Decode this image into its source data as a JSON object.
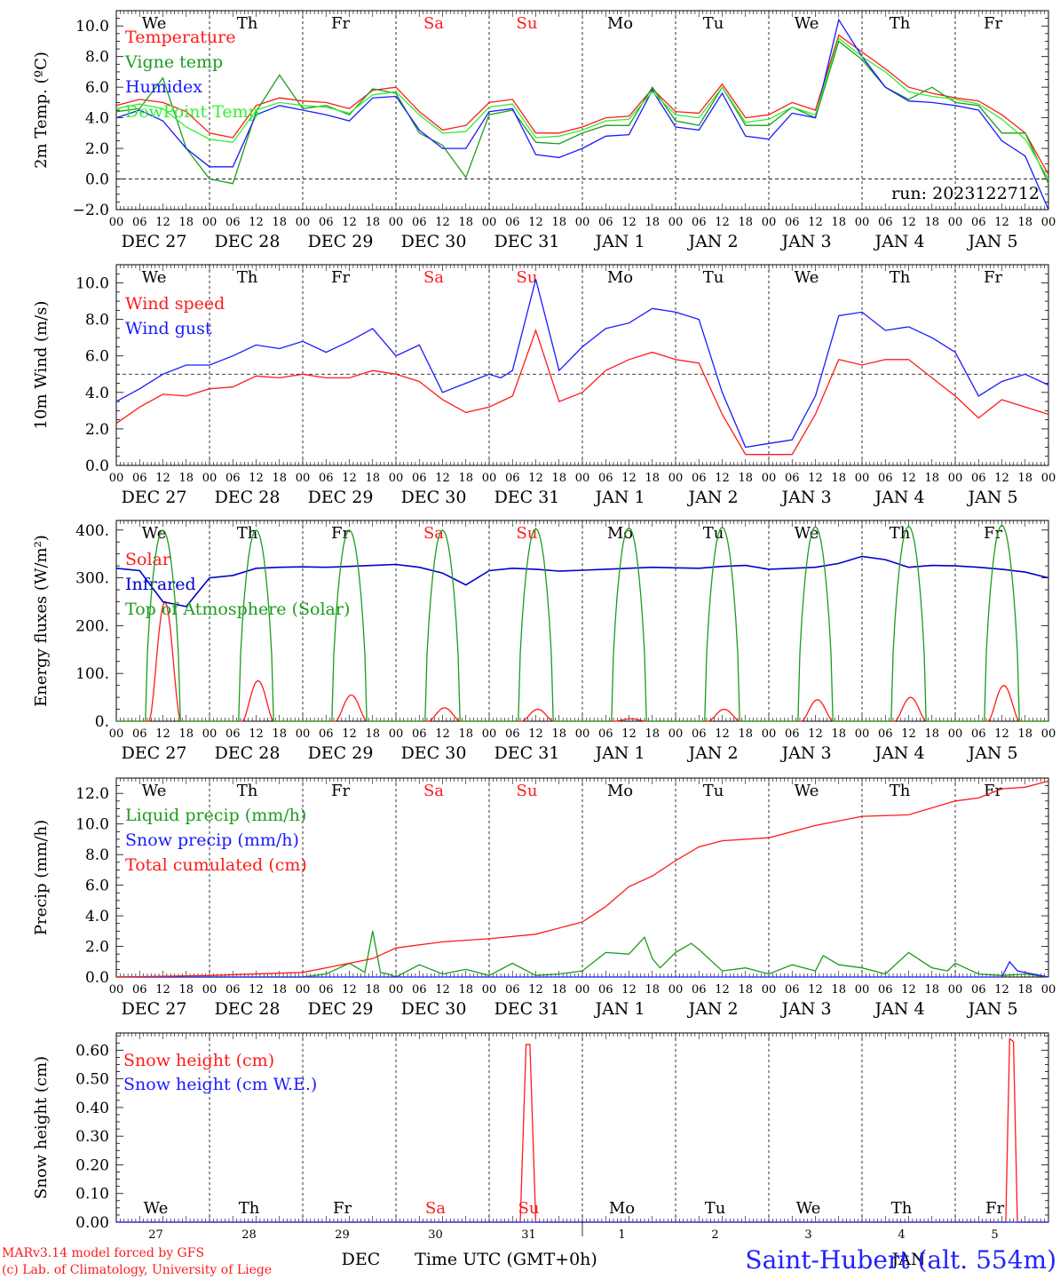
{
  "time_axis": {
    "hour_labels": [
      "00",
      "06",
      "12",
      "18"
    ],
    "end_label": "00",
    "day_labels": [
      "DEC 27",
      "DEC 28",
      "DEC 29",
      "DEC 30",
      "DEC 31",
      "JAN  1",
      "JAN  2",
      "JAN  3",
      "JAN  4",
      "JAN  5"
    ],
    "weekdays": [
      "We",
      "Th",
      "Fr",
      "Sa",
      "Su",
      "Mo",
      "Tu",
      "We",
      "Th",
      "Fr"
    ],
    "weekend_indices": [
      3,
      4
    ],
    "bottom_day_numbers": [
      "27",
      "28",
      "29",
      "30",
      "31",
      "1",
      "2",
      "3",
      "4",
      "5"
    ],
    "bottom_month_left": "DEC",
    "bottom_month_right": "JAN",
    "xlabel": "Time UTC (GMT+0h)"
  },
  "footer": {
    "model_line": "MARv3.14 model forced by GFS",
    "lab_line": "(c) Lab. of Climatology, University of Liege",
    "station": "Saint-Hubert (alt. 554m)"
  },
  "colors": {
    "red": "#ff1a1a",
    "green": "#1c9c1c",
    "blue": "#1a1aff",
    "light_green": "#33ee33",
    "dark_blue": "#0000cc"
  },
  "chart_data": [
    {
      "type": "line",
      "ylabel": "2m Temp. (ºC)",
      "ylim": [
        -2,
        11
      ],
      "yticks": [
        -2,
        0,
        2,
        4,
        6,
        8,
        10
      ],
      "ytick_labels": [
        "−2.0",
        "0.0",
        "2.0",
        "4.0",
        "6.0",
        "8.0",
        "10.0"
      ],
      "hline": 0,
      "run_label": "run: 2023122712",
      "series": [
        {
          "name": "Temperature",
          "color": "red",
          "x": [
            0,
            6,
            12,
            18,
            24,
            30,
            36,
            42,
            48,
            54,
            60,
            66,
            72,
            78,
            84,
            90,
            96,
            102,
            108,
            114,
            120,
            126,
            132,
            138,
            144,
            150,
            156,
            162,
            168,
            174,
            180,
            186,
            192,
            198,
            204,
            210,
            216,
            222,
            228,
            234,
            240
          ],
          "values": [
            4.8,
            5.2,
            5.0,
            4.4,
            3.0,
            2.7,
            4.8,
            5.3,
            5.1,
            5.0,
            4.6,
            5.8,
            6.0,
            4.4,
            3.2,
            3.5,
            5.0,
            5.2,
            3.0,
            3.0,
            3.4,
            4.0,
            4.1,
            5.9,
            4.4,
            4.3,
            6.2,
            4.0,
            4.2,
            5.0,
            4.5,
            9.4,
            8.3,
            7.2,
            6.0,
            5.6,
            5.3,
            5.1,
            4.2,
            3.0,
            0.3
          ]
        },
        {
          "name": "Vigne temp",
          "color": "green",
          "x": [
            0,
            6,
            12,
            18,
            24,
            30,
            36,
            42,
            48,
            54,
            60,
            66,
            72,
            78,
            84,
            90,
            96,
            102,
            108,
            114,
            120,
            126,
            132,
            138,
            144,
            150,
            156,
            162,
            168,
            174,
            180,
            186,
            192,
            198,
            204,
            210,
            216,
            222,
            228,
            234,
            240
          ],
          "values": [
            4.4,
            4.6,
            6.6,
            2.0,
            0.0,
            -0.3,
            4.4,
            6.8,
            4.6,
            4.8,
            4.2,
            5.9,
            5.6,
            3.0,
            2.2,
            0.1,
            4.2,
            4.5,
            2.4,
            2.3,
            3.0,
            3.5,
            3.5,
            6.0,
            3.8,
            3.5,
            6.0,
            3.5,
            3.5,
            4.7,
            4.0,
            9.0,
            7.8,
            6.0,
            5.2,
            6.0,
            5.0,
            4.8,
            3.0,
            3.0,
            -0.3
          ]
        },
        {
          "name": "Humidex",
          "color": "blue",
          "x": [
            0,
            6,
            12,
            18,
            24,
            30,
            36,
            42,
            48,
            54,
            60,
            66,
            72,
            78,
            84,
            90,
            96,
            102,
            108,
            114,
            120,
            126,
            132,
            138,
            144,
            150,
            156,
            162,
            168,
            174,
            180,
            186,
            192,
            198,
            204,
            210,
            216,
            222,
            228,
            234,
            240
          ],
          "values": [
            4.0,
            4.5,
            3.8,
            2.0,
            0.8,
            0.8,
            4.2,
            4.8,
            4.5,
            4.2,
            3.8,
            5.3,
            5.4,
            3.2,
            2.0,
            2.0,
            4.4,
            4.6,
            1.6,
            1.4,
            2.0,
            2.8,
            2.9,
            5.8,
            3.4,
            3.2,
            5.6,
            2.8,
            2.6,
            4.3,
            4.0,
            10.4,
            8.0,
            6.0,
            5.1,
            5.0,
            4.8,
            4.5,
            2.5,
            1.5,
            -2.0
          ]
        },
        {
          "name": "DewPoint Temp",
          "color": "light_green",
          "x": [
            0,
            6,
            12,
            18,
            24,
            30,
            36,
            42,
            48,
            54,
            60,
            66,
            72,
            78,
            84,
            90,
            96,
            102,
            108,
            114,
            120,
            126,
            132,
            138,
            144,
            150,
            156,
            162,
            168,
            174,
            180,
            186,
            192,
            198,
            204,
            210,
            216,
            222,
            228,
            234,
            240
          ],
          "values": [
            4.6,
            4.9,
            4.6,
            3.4,
            2.6,
            2.4,
            4.5,
            5.0,
            4.8,
            4.7,
            4.3,
            5.5,
            5.7,
            4.2,
            3.0,
            3.1,
            4.7,
            4.9,
            2.7,
            2.8,
            3.2,
            3.8,
            3.9,
            5.7,
            4.2,
            4.0,
            6.0,
            3.7,
            3.9,
            4.7,
            4.2,
            9.2,
            8.0,
            7.0,
            5.7,
            5.4,
            5.2,
            4.9,
            3.9,
            2.6,
            0.0
          ]
        }
      ]
    },
    {
      "type": "line",
      "ylabel": "10m Wind (m/s)",
      "ylim": [
        0,
        11
      ],
      "yticks": [
        0,
        2,
        4,
        6,
        8,
        10
      ],
      "ytick_labels": [
        "0.0",
        "2.0",
        "4.0",
        "6.0",
        "8.0",
        "10.0"
      ],
      "hline": 5,
      "series": [
        {
          "name": "Wind speed",
          "color": "red",
          "x": [
            0,
            6,
            12,
            18,
            24,
            30,
            36,
            42,
            48,
            54,
            60,
            66,
            72,
            78,
            84,
            90,
            96,
            99,
            102,
            108,
            114,
            120,
            126,
            132,
            138,
            144,
            150,
            156,
            162,
            168,
            174,
            180,
            186,
            192,
            198,
            204,
            210,
            216,
            222,
            228,
            234,
            240
          ],
          "values": [
            2.3,
            3.2,
            3.9,
            3.8,
            4.2,
            4.3,
            4.9,
            4.8,
            5.0,
            4.8,
            4.8,
            5.2,
            5.0,
            4.6,
            3.6,
            2.9,
            3.2,
            3.5,
            3.8,
            7.4,
            3.5,
            4.0,
            5.2,
            5.8,
            6.2,
            5.8,
            5.6,
            2.8,
            0.6,
            0.6,
            0.6,
            2.8,
            5.8,
            5.5,
            5.8,
            5.8,
            4.8,
            3.8,
            2.6,
            3.6,
            3.2,
            2.8
          ]
        },
        {
          "name": "Wind gust",
          "color": "blue",
          "x": [
            0,
            6,
            12,
            18,
            24,
            30,
            36,
            42,
            48,
            54,
            60,
            66,
            72,
            78,
            84,
            90,
            96,
            99,
            102,
            108,
            114,
            120,
            126,
            132,
            138,
            144,
            150,
            156,
            162,
            168,
            174,
            180,
            186,
            192,
            198,
            204,
            210,
            216,
            222,
            228,
            234,
            240
          ],
          "values": [
            3.5,
            4.2,
            5.0,
            5.5,
            5.5,
            6.0,
            6.6,
            6.4,
            6.8,
            6.2,
            6.8,
            7.5,
            6.0,
            6.6,
            4.0,
            4.5,
            5.0,
            4.8,
            5.2,
            10.2,
            5.2,
            6.5,
            7.5,
            7.8,
            8.6,
            8.4,
            8.0,
            4.0,
            1.0,
            1.2,
            1.4,
            3.8,
            8.2,
            8.4,
            7.4,
            7.6,
            7.0,
            6.2,
            3.8,
            4.6,
            5.0,
            4.4
          ]
        }
      ]
    },
    {
      "type": "line",
      "ylabel": "Energy fluxes (W/m²)",
      "ylim": [
        0,
        420
      ],
      "yticks": [
        0,
        100,
        200,
        300,
        400
      ],
      "ytick_labels": [
        "0.",
        "100.",
        "200.",
        "300.",
        "400."
      ],
      "series": [
        {
          "name": "Solar",
          "color": "red",
          "diurnal_peaks": [
            250,
            85,
            55,
            28,
            25,
            5,
            25,
            45,
            50,
            75
          ]
        },
        {
          "name": "Infrared",
          "color": "dark_blue",
          "x": [
            0,
            6,
            12,
            18,
            24,
            30,
            36,
            42,
            48,
            54,
            60,
            66,
            72,
            78,
            84,
            90,
            96,
            102,
            108,
            114,
            120,
            126,
            132,
            138,
            144,
            150,
            156,
            162,
            168,
            174,
            180,
            186,
            192,
            198,
            204,
            210,
            216,
            222,
            228,
            234,
            240
          ],
          "values": [
            320,
            315,
            250,
            240,
            300,
            305,
            320,
            322,
            323,
            322,
            324,
            326,
            328,
            322,
            310,
            285,
            315,
            320,
            318,
            314,
            316,
            318,
            320,
            322,
            321,
            320,
            324,
            326,
            318,
            320,
            322,
            330,
            345,
            338,
            322,
            326,
            325,
            322,
            318,
            312,
            300
          ]
        },
        {
          "name": "Top of Atmosphere (Solar)",
          "color": "green",
          "diurnal_peaks": [
            400,
            400,
            400,
            400,
            403,
            405,
            406,
            407,
            408,
            410
          ]
        }
      ]
    },
    {
      "type": "line",
      "ylabel": "Precip (mm/h)",
      "ylim": [
        0,
        13
      ],
      "yticks": [
        0,
        2,
        4,
        6,
        8,
        10,
        12
      ],
      "ytick_labels": [
        "0.0",
        "2.0",
        "4.0",
        "6.0",
        "8.0",
        "10.0",
        "12.0"
      ],
      "series": [
        {
          "name": "Liquid precip (mm/h)",
          "color": "green",
          "x": [
            0,
            24,
            48,
            54,
            60,
            64,
            66,
            68,
            70,
            72,
            78,
            84,
            90,
            96,
            102,
            108,
            114,
            120,
            126,
            132,
            136,
            138,
            140,
            144,
            148,
            150,
            156,
            162,
            168,
            174,
            180,
            182,
            186,
            192,
            198,
            204,
            210,
            214,
            216,
            222,
            228,
            234,
            240
          ],
          "values": [
            0,
            0,
            0,
            0.2,
            0.9,
            0.3,
            3.0,
            0.3,
            0.2,
            0,
            0.8,
            0.2,
            0.5,
            0.1,
            0.9,
            0.1,
            0.2,
            0.4,
            1.6,
            1.5,
            2.6,
            1.2,
            0.6,
            1.6,
            2.2,
            1.8,
            0.4,
            0.6,
            0.2,
            0.8,
            0.4,
            1.4,
            0.8,
            0.6,
            0.2,
            1.6,
            0.6,
            0.4,
            0.9,
            0.2,
            0.1,
            0.2,
            0
          ]
        },
        {
          "name": "Snow precip (mm/h)",
          "color": "blue",
          "x": [
            0,
            200,
            228,
            230,
            232,
            236,
            240
          ],
          "values": [
            0,
            0,
            0,
            1.0,
            0.4,
            0.2,
            0
          ]
        },
        {
          "name": "Total cumulated (cm)",
          "color": "red",
          "x": [
            0,
            24,
            48,
            60,
            66,
            72,
            84,
            96,
            108,
            120,
            126,
            132,
            138,
            144,
            150,
            156,
            168,
            180,
            192,
            204,
            216,
            222,
            228,
            234,
            240
          ],
          "values": [
            0,
            0.1,
            0.3,
            0.9,
            1.2,
            1.9,
            2.3,
            2.5,
            2.8,
            3.6,
            4.6,
            5.9,
            6.6,
            7.6,
            8.5,
            8.9,
            9.1,
            9.9,
            10.5,
            10.6,
            11.5,
            11.7,
            12.3,
            12.4,
            12.8
          ]
        }
      ]
    },
    {
      "type": "line",
      "ylabel": "Snow height (cm)",
      "ylim": [
        0,
        0.66
      ],
      "yticks": [
        0,
        0.1,
        0.2,
        0.3,
        0.4,
        0.5,
        0.6
      ],
      "ytick_labels": [
        "0.00",
        "0.10",
        "0.20",
        "0.30",
        "0.40",
        "0.50",
        "0.60"
      ],
      "series": [
        {
          "name": "Snow height (cm)",
          "color": "red",
          "x": [
            0,
            104,
            105.5,
            106.5,
            108,
            229,
            230,
            231,
            232,
            240
          ],
          "values": [
            0,
            0,
            0.62,
            0.62,
            0,
            0,
            0.64,
            0.63,
            0,
            0
          ]
        },
        {
          "name": "Snow height (cm W.E.)",
          "color": "blue",
          "x": [
            0,
            240
          ],
          "values": [
            0,
            0
          ]
        }
      ]
    }
  ]
}
